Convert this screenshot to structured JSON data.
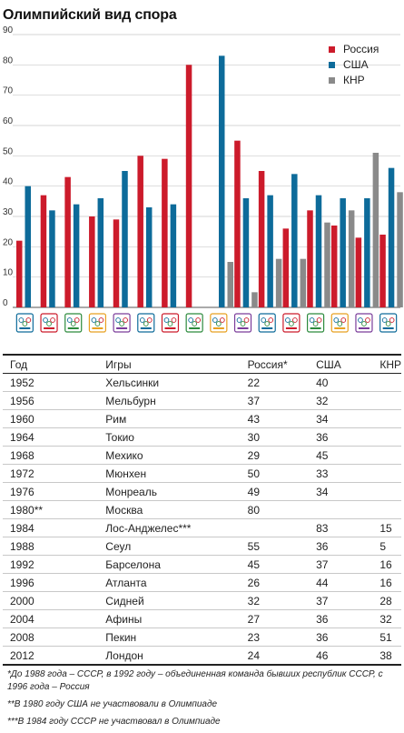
{
  "title": "Олимпийский вид спора",
  "legend": [
    {
      "label": "Россия",
      "color": "#cc1b2b"
    },
    {
      "label": "США",
      "color": "#0d6b9a"
    },
    {
      "label": "КНР",
      "color": "#8a8a8a"
    }
  ],
  "chart_data": {
    "type": "bar",
    "title": "Олимпийский вид спора",
    "xlabel": "",
    "ylabel": "",
    "ylim": [
      0,
      90
    ],
    "yticks": [
      0,
      10,
      20,
      30,
      40,
      50,
      60,
      70,
      80,
      90
    ],
    "grid": true,
    "legend_position": "top-right",
    "categories": [
      "1952",
      "1956",
      "1960",
      "1964",
      "1968",
      "1972",
      "1976",
      "1980",
      "1984",
      "1988",
      "1992",
      "1996",
      "2000",
      "2004",
      "2008",
      "2012"
    ],
    "category_icons": [
      "helsinki-1952-logo-icon",
      "melbourne-1956-logo-icon",
      "rome-1960-logo-icon",
      "tokyo-1964-logo-icon",
      "mexico-1968-logo-icon",
      "munich-1972-logo-icon",
      "montreal-1976-logo-icon",
      "moscow-1980-logo-icon",
      "los-angeles-1984-logo-icon",
      "seoul-1988-logo-icon",
      "barcelona-1992-logo-icon",
      "atlanta-1996-logo-icon",
      "sydney-2000-logo-icon",
      "athens-2004-logo-icon",
      "beijing-2008-logo-icon",
      "london-2012-logo-icon"
    ],
    "series": [
      {
        "name": "Россия",
        "color": "#cc1b2b",
        "values": [
          22,
          37,
          43,
          30,
          29,
          50,
          49,
          80,
          null,
          55,
          45,
          26,
          32,
          27,
          23,
          24
        ]
      },
      {
        "name": "США",
        "color": "#0d6b9a",
        "values": [
          40,
          32,
          34,
          36,
          45,
          33,
          34,
          null,
          83,
          36,
          37,
          44,
          37,
          36,
          36,
          46
        ]
      },
      {
        "name": "КНР",
        "color": "#8a8a8a",
        "values": [
          null,
          null,
          null,
          null,
          null,
          null,
          null,
          null,
          15,
          5,
          16,
          16,
          28,
          32,
          51,
          38
        ]
      }
    ]
  },
  "table": {
    "headers": [
      "Год",
      "Игры",
      "Россия*",
      "США",
      "КНР"
    ],
    "rows": [
      [
        "1952",
        "Хельсинки",
        "22",
        "40",
        ""
      ],
      [
        "1956",
        "Мельбурн",
        "37",
        "32",
        ""
      ],
      [
        "1960",
        "Рим",
        "43",
        "34",
        ""
      ],
      [
        "1964",
        "Токио",
        "30",
        "36",
        ""
      ],
      [
        "1968",
        "Мехико",
        "29",
        "45",
        ""
      ],
      [
        "1972",
        "Мюнхен",
        "50",
        "33",
        ""
      ],
      [
        "1976",
        "Монреаль",
        "49",
        "34",
        ""
      ],
      [
        "1980**",
        "Москва",
        "80",
        "",
        ""
      ],
      [
        "1984",
        "Лос-Анджелес***",
        "",
        "83",
        "15"
      ],
      [
        "1988",
        "Сеул",
        "55",
        "36",
        "5"
      ],
      [
        "1992",
        "Барселона",
        "45",
        "37",
        "16"
      ],
      [
        "1996",
        "Атланта",
        "26",
        "44",
        "16"
      ],
      [
        "2000",
        "Сидней",
        "32",
        "37",
        "28"
      ],
      [
        "2004",
        "Афины",
        "27",
        "36",
        "32"
      ],
      [
        "2008",
        "Пекин",
        "23",
        "36",
        "51"
      ],
      [
        "2012",
        "Лондон",
        "24",
        "46",
        "38"
      ]
    ]
  },
  "notes": [
    "*До 1988 года – СССР, в 1992 году – объединенная команда бывших республик СССР, с 1996 года – Россия",
    "**В 1980 году США не участвовали в Олимпиаде",
    "***В 1984 году СССР не участвовал в Олимпиаде"
  ]
}
